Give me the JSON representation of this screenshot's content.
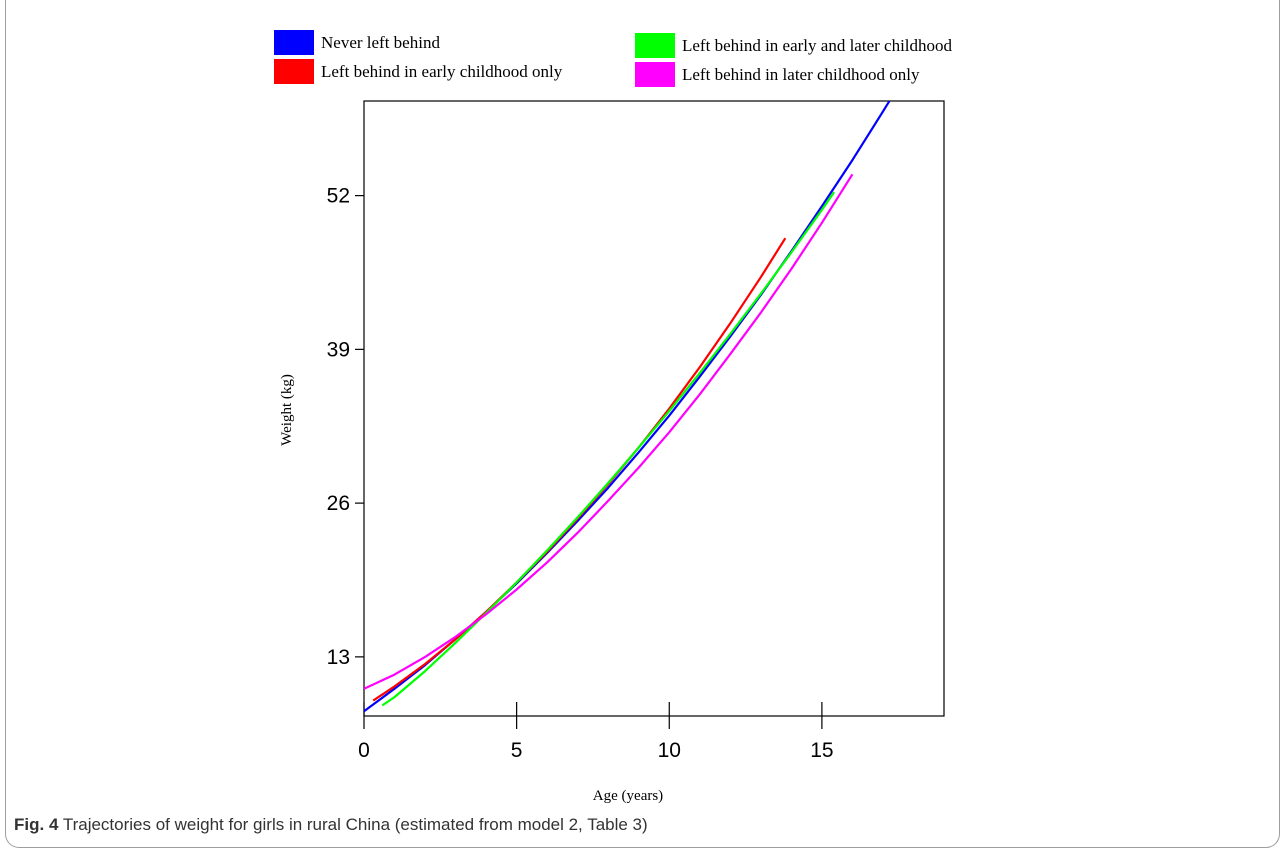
{
  "figure": {
    "label": "Fig. 4",
    "caption": "Trajectories of weight for girls in rural China (estimated from model 2, Table 3)"
  },
  "chart_data": {
    "type": "line",
    "xlabel": "Age (years)",
    "ylabel": "Weight (kg)",
    "xlim": [
      0,
      19
    ],
    "ylim": [
      8,
      60
    ],
    "xticks": [
      0,
      5,
      10,
      15
    ],
    "yticks": [
      13,
      26,
      39,
      52
    ],
    "legend_position": "top",
    "series": [
      {
        "name": "Never left behind",
        "color": "#0000ff",
        "x": [
          0,
          1,
          2,
          3,
          4,
          5,
          6,
          7,
          8,
          9,
          10,
          11,
          12,
          13,
          14,
          15,
          16,
          17,
          18
        ],
        "y": [
          8.4,
          10.3,
          12.3,
          14.5,
          16.8,
          19.2,
          21.8,
          24.5,
          27.3,
          30.3,
          33.4,
          36.7,
          40.1,
          43.6,
          47.3,
          51.1,
          55.0,
          59.1,
          63.3
        ]
      },
      {
        "name": "Left behind in early childhood only",
        "color": "#ff0000",
        "x": [
          0.3,
          1,
          2,
          3,
          4,
          5,
          6,
          7,
          8,
          9,
          10,
          11,
          12,
          13,
          13.8
        ],
        "y": [
          9.3,
          10.5,
          12.4,
          14.5,
          16.8,
          19.3,
          21.9,
          24.7,
          27.6,
          30.7,
          34.0,
          37.5,
          41.2,
          45.1,
          48.4
        ]
      },
      {
        "name": "Left behind in early and later childhood",
        "color": "#00ff00",
        "x": [
          0.6,
          1,
          2,
          3,
          4,
          5,
          6,
          7,
          8,
          9,
          10,
          11,
          12,
          13,
          14,
          15,
          15.4
        ],
        "y": [
          8.9,
          9.6,
          11.8,
          14.2,
          16.7,
          19.3,
          22.0,
          24.8,
          27.7,
          30.7,
          33.8,
          37.0,
          40.3,
          43.7,
          47.2,
          50.8,
          52.3
        ]
      },
      {
        "name": "Left behind in later childhood only",
        "color": "#ff00ff",
        "x": [
          0,
          1,
          2,
          3,
          4,
          5,
          6,
          7,
          8,
          9,
          10,
          11,
          12,
          13,
          14,
          15,
          16
        ],
        "y": [
          10.3,
          11.5,
          13.0,
          14.7,
          16.6,
          18.7,
          21.0,
          23.5,
          26.2,
          29.0,
          32.0,
          35.2,
          38.6,
          42.1,
          45.8,
          49.7,
          53.8
        ]
      }
    ]
  }
}
